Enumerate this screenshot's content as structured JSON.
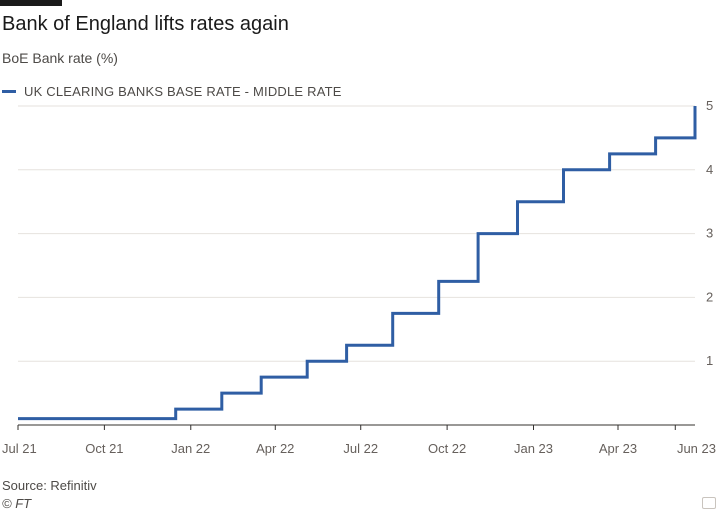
{
  "header": {
    "title": "Bank of England lifts rates again",
    "subtitle": "BoE Bank rate (%)"
  },
  "footer": {
    "source": "Source: Refinitiv",
    "copyright": "© FT"
  },
  "colors": {
    "series": "#2f5ea4",
    "grid": "#e6e2de",
    "axis": "#33302e",
    "text": "#66605c"
  },
  "chart_data": {
    "type": "line",
    "step": true,
    "title": "Bank of England lifts rates again",
    "subtitle": "BoE Bank rate (%)",
    "xlabel": "",
    "ylabel": "",
    "x_ticks": [
      "Jul 21",
      "Oct 21",
      "Jan 22",
      "Apr 22",
      "Jul 22",
      "Oct 22",
      "Jan 23",
      "Apr 23",
      "Jun 23"
    ],
    "x_tick_dates": [
      "2021-07-01",
      "2021-10-01",
      "2022-01-01",
      "2022-04-01",
      "2022-07-01",
      "2022-10-01",
      "2023-01-01",
      "2023-04-01",
      "2023-06-01"
    ],
    "y_ticks": [
      "1",
      "2",
      "3",
      "4",
      "5"
    ],
    "y_tick_values": [
      1,
      2,
      3,
      4,
      5
    ],
    "xlim": [
      "2021-07-01",
      "2023-06-22"
    ],
    "ylim": [
      0,
      5
    ],
    "y_axis_side": "right",
    "grid": "horizontal",
    "legend": "top-left",
    "series": [
      {
        "name": "UK CLEARING BANKS BASE RATE - MIDDLE RATE",
        "points": [
          {
            "x": "2021-07-01",
            "y": 0.1
          },
          {
            "x": "2021-12-16",
            "y": 0.25
          },
          {
            "x": "2022-02-03",
            "y": 0.5
          },
          {
            "x": "2022-03-17",
            "y": 0.75
          },
          {
            "x": "2022-05-05",
            "y": 1.0
          },
          {
            "x": "2022-06-16",
            "y": 1.25
          },
          {
            "x": "2022-08-04",
            "y": 1.75
          },
          {
            "x": "2022-09-22",
            "y": 2.25
          },
          {
            "x": "2022-11-03",
            "y": 3.0
          },
          {
            "x": "2022-12-15",
            "y": 3.5
          },
          {
            "x": "2023-02-02",
            "y": 4.0
          },
          {
            "x": "2023-03-23",
            "y": 4.25
          },
          {
            "x": "2023-05-11",
            "y": 4.5
          },
          {
            "x": "2023-06-22",
            "y": 5.0
          }
        ]
      }
    ]
  }
}
